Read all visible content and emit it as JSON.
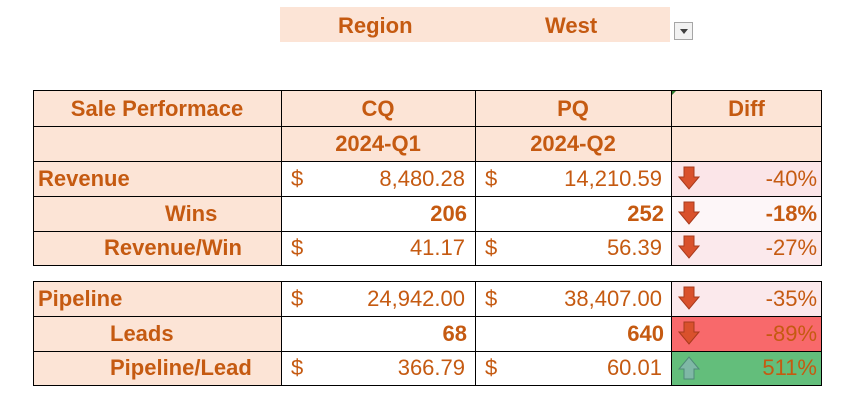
{
  "filter": {
    "label": "Region",
    "value": "West"
  },
  "header": {
    "title": "Sale Performace",
    "cq": "CQ",
    "pq": "PQ",
    "diff": "Diff",
    "cq_period": "2024-Q1",
    "pq_period": "2024-Q2"
  },
  "currency_symbol": "$",
  "rows": {
    "revenue": {
      "label": "Revenue",
      "cq": "8,480.28",
      "pq": "14,210.59",
      "diff": "-40%",
      "trend": "down"
    },
    "wins": {
      "label": "Wins",
      "cq": "206",
      "pq": "252",
      "diff": "-18%",
      "trend": "down"
    },
    "revenue_per_win": {
      "label": "Revenue/Win",
      "cq": "41.17",
      "pq": "56.39",
      "diff": "-27%",
      "trend": "down"
    },
    "pipeline": {
      "label": "Pipeline",
      "cq": "24,942.00",
      "pq": "38,407.00",
      "diff": "-35%",
      "trend": "down"
    },
    "leads": {
      "label": "Leads",
      "cq": "68",
      "pq": "640",
      "diff": "-89%",
      "trend": "down"
    },
    "pipeline_per_lead": {
      "label": "Pipeline/Lead",
      "cq": "366.79",
      "pq": "60.01",
      "diff": "511%",
      "trend": "up"
    }
  },
  "colors": {
    "text": "#c55a11",
    "peach": "#fce4d6",
    "diff_light_pink": "#fbe5e8",
    "diff_near_white": "#fdf6f8",
    "diff_red": "#f8696b",
    "diff_green": "#63be7b",
    "arrow_down": "#d9512c",
    "arrow_up": "#7fb8a6"
  },
  "icons": {
    "down": "arrow-down-icon",
    "up": "arrow-up-icon",
    "dropdown": "chevron-down-icon"
  }
}
